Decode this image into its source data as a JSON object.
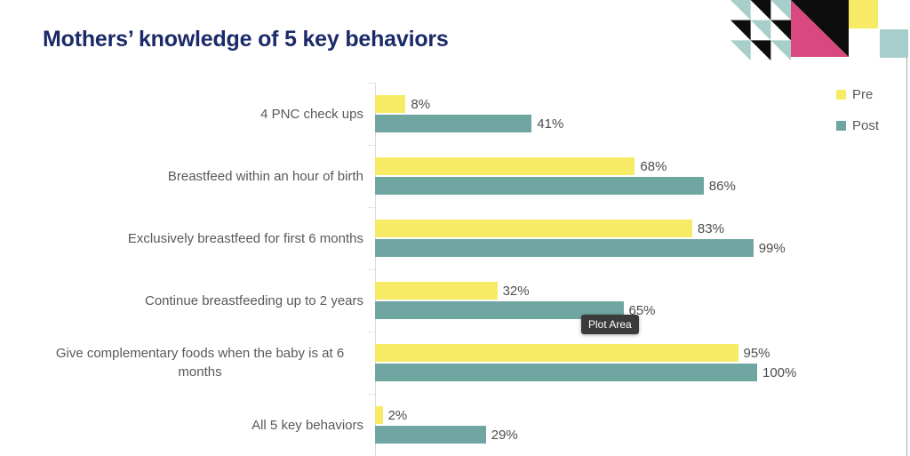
{
  "title": "Mothers’ knowledge of 5 key behaviors",
  "tooltip_label": "Plot Area",
  "chart_data": {
    "type": "bar",
    "orientation": "horizontal",
    "title": "Mothers’ knowledge of 5 key behaviors",
    "categories": [
      "4 PNC check ups",
      "Breastfeed within an hour of birth",
      "Exclusively breastfeed for first 6 months",
      "Continue breastfeeding up to 2 years",
      "Give complementary foods when the baby is at 6 months",
      "All 5 key behaviors"
    ],
    "series": [
      {
        "name": "Pre",
        "color": "#f7eb66",
        "values": [
          8,
          68,
          83,
          32,
          95,
          2
        ]
      },
      {
        "name": "Post",
        "color": "#6fa6a2",
        "values": [
          41,
          86,
          99,
          65,
          100,
          29
        ]
      }
    ],
    "value_suffix": "%",
    "value_labels": true,
    "xlim": [
      0,
      100
    ],
    "grid": false,
    "legend_position": "top-right"
  },
  "decor": {
    "triangle_teal": "#a8cecb",
    "triangle_black": "#0d0d0d",
    "square_pink": "#d9487e",
    "square_black": "#0d0d0d",
    "square_yellow": "#f7eb66",
    "square_teal": "#a8cecb",
    "edge_line": "#adadad"
  },
  "colors": {
    "background": "#ffffff",
    "title_text": "#1b2a68",
    "category_label": "#595959",
    "value_label": "#4d4d4d",
    "legend_label": "#595959",
    "axis_line": "#dcdcdc",
    "tooltip_bg": "#3b3b3b",
    "tooltip_text": "#ffffff"
  }
}
